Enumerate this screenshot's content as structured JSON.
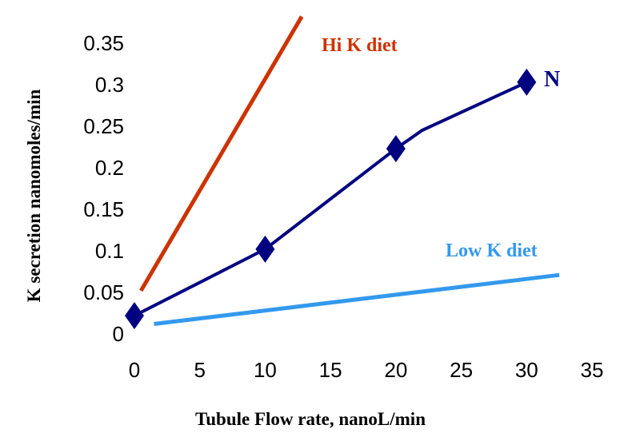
{
  "chart_data": {
    "type": "line",
    "title": "",
    "xlabel": "Tubule Flow rate, nanoL/min",
    "ylabel": "K secretion  nanomoles/min",
    "xlim": [
      0,
      35
    ],
    "ylim": [
      0,
      0.35
    ],
    "x_ticks": [
      0,
      5,
      10,
      15,
      20,
      25,
      30,
      35
    ],
    "x_tick_labels": [
      "0",
      "5",
      "10",
      "15",
      "20",
      "25",
      "30",
      "35"
    ],
    "y_ticks": [
      0,
      0.05,
      0.1,
      0.15,
      0.2,
      0.25,
      0.3,
      0.35
    ],
    "y_tick_labels": [
      "0",
      "0.05",
      "0.1",
      "0.15",
      "0.2",
      "0.25",
      "0.3",
      "0.35"
    ],
    "grid": false,
    "series": [
      {
        "name": "Hi K diet",
        "label": "Hi K diet",
        "color": "#cc3300",
        "markers": false,
        "points": [
          [
            0.5,
            0.052
          ],
          [
            12.8,
            0.382
          ]
        ]
      },
      {
        "name": "N",
        "label": "N",
        "color": "#000080",
        "markers": true,
        "marker": "diamond",
        "marker_color": "#000080",
        "points": [
          [
            0,
            0.022
          ],
          [
            7,
            0.078
          ],
          [
            10,
            0.102
          ],
          [
            20,
            0.223
          ],
          [
            22,
            0.245
          ],
          [
            30,
            0.303
          ]
        ],
        "marker_points": [
          [
            0,
            0.022
          ],
          [
            10,
            0.102
          ],
          [
            20,
            0.223
          ],
          [
            30,
            0.303
          ]
        ]
      },
      {
        "name": "Low K diet",
        "label": "Low K diet",
        "color": "#3399ee",
        "markers": false,
        "points": [
          [
            1.5,
            0.012
          ],
          [
            32.5,
            0.071
          ]
        ]
      }
    ]
  }
}
